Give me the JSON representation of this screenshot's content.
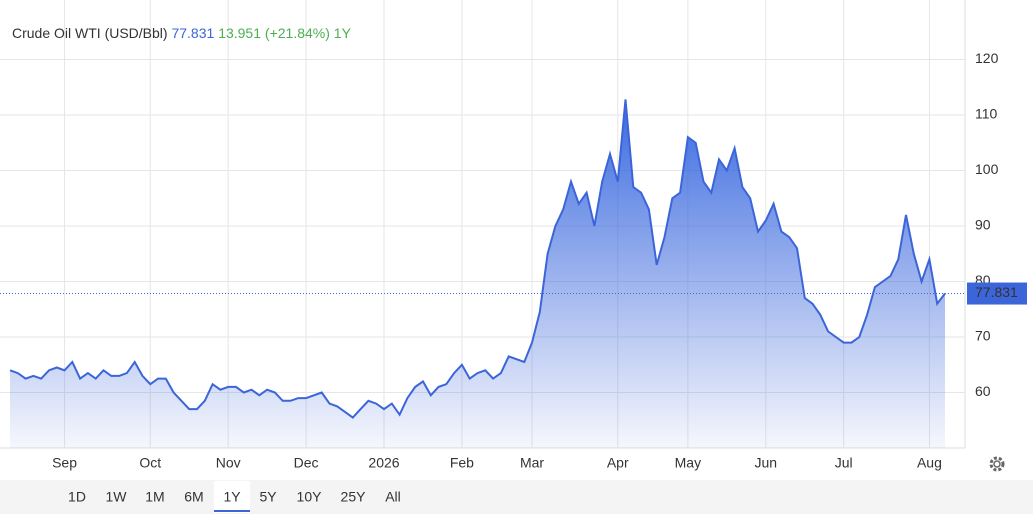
{
  "chart_data": {
    "type": "area",
    "title": "Crude Oil WTI (USD/Bbl)",
    "change": 13.951,
    "change_percent": "(+21.84%)",
    "period": "1Y",
    "color": "#3b65d8",
    "categories": [
      null,
      null,
      null,
      null,
      null,
      null,
      null,
      "Sep",
      null,
      null,
      null,
      null,
      null,
      null,
      null,
      null,
      null,
      null,
      "Oct",
      null,
      null,
      null,
      null,
      null,
      null,
      null,
      null,
      null,
      "Nov",
      null,
      null,
      null,
      null,
      null,
      null,
      null,
      null,
      null,
      "Dec",
      null,
      null,
      null,
      null,
      null,
      null,
      null,
      null,
      null,
      "2026",
      null,
      null,
      null,
      null,
      null,
      null,
      null,
      null,
      null,
      "Feb",
      null,
      null,
      null,
      null,
      null,
      null,
      null,
      null,
      "Mar",
      null,
      null,
      null,
      null,
      null,
      null,
      null,
      null,
      null,
      null,
      "Apr",
      null,
      null,
      null,
      null,
      null,
      null,
      null,
      null,
      "May",
      null,
      null,
      null,
      null,
      null,
      null,
      null,
      null,
      null,
      "Jun",
      null,
      null,
      null,
      null,
      null,
      null,
      null,
      null,
      null,
      "Jul",
      null,
      null,
      null,
      null,
      null,
      null,
      null,
      null,
      null,
      null,
      "Aug",
      null,
      null
    ],
    "values": [
      64,
      63.5,
      62.5,
      63,
      62.5,
      64,
      64.5,
      64,
      65.5,
      62.5,
      63.5,
      62.5,
      64,
      63,
      63,
      63.5,
      65.5,
      63,
      61.5,
      62.5,
      62.5,
      60,
      58.5,
      57,
      57,
      58.5,
      61.5,
      60.5,
      61,
      61,
      60,
      60.5,
      59.5,
      60.5,
      60,
      58.5,
      58.5,
      59,
      59,
      59.5,
      60,
      58,
      57.5,
      56.5,
      55.5,
      57,
      58.5,
      58,
      57,
      58,
      56,
      59,
      61,
      62,
      59.5,
      61,
      61.5,
      63.5,
      65,
      62.5,
      63.5,
      64,
      62.5,
      63.5,
      66.5,
      66,
      65.5,
      69,
      74.5,
      85,
      90,
      93,
      98,
      94,
      96,
      90,
      98,
      103,
      98,
      112.8,
      97,
      96,
      93,
      83,
      88,
      95,
      96,
      106,
      105,
      98,
      96,
      102,
      100,
      104,
      97,
      95,
      89,
      91,
      94,
      89,
      88,
      86,
      77,
      76,
      74,
      71,
      70,
      69,
      69,
      70,
      74,
      79,
      80,
      81,
      84,
      92,
      85,
      80,
      84,
      76,
      77.831
    ],
    "ylim": [
      50,
      130
    ],
    "yticks": [
      60,
      70,
      80,
      90,
      100,
      110,
      120
    ],
    "grid": true,
    "ranges": [
      "1D",
      "1W",
      "1M",
      "6M",
      "1Y",
      "5Y",
      "10Y",
      "25Y",
      "All"
    ],
    "selected_range": 4
  }
}
